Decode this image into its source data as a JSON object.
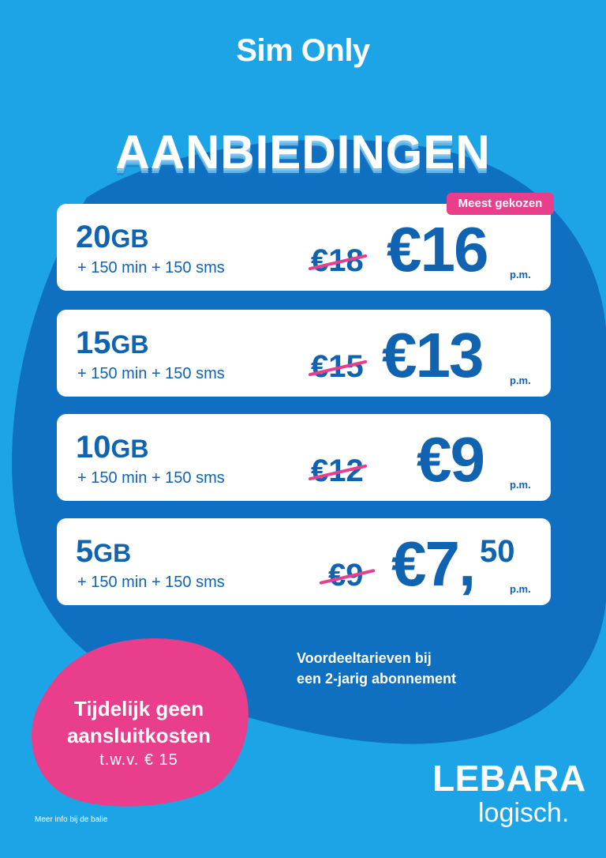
{
  "header": {
    "subtitle": "Sim Only",
    "title": "AANBIEDINGEN"
  },
  "badge": "Meest gekozen",
  "offers": [
    {
      "gb": "20",
      "unit": "GB",
      "extras": "+ 150 min + 150 sms",
      "old_price": "€18",
      "price": "€16",
      "cents": "",
      "per_month": "p.m."
    },
    {
      "gb": "15",
      "unit": "GB",
      "extras": "+ 150 min + 150 sms",
      "old_price": "€15",
      "price": "€13",
      "cents": "",
      "per_month": "p.m."
    },
    {
      "gb": "10",
      "unit": "GB",
      "extras": "+ 150 min + 150 sms",
      "old_price": "€12",
      "price": "€9",
      "cents": "",
      "per_month": "p.m."
    },
    {
      "gb": "5",
      "unit": "GB",
      "extras": "+ 150 min + 150 sms",
      "old_price": "€9",
      "price": "€7,",
      "cents": "50",
      "per_month": "p.m."
    }
  ],
  "note": {
    "line1": "Voordeeltarieven bij",
    "line2": "een 2-jarig abonnement"
  },
  "promo": {
    "line1": "Tijdelijk geen",
    "line2": "aansluitkosten",
    "line3": "t.w.v. € 15"
  },
  "brand": {
    "name": "LEBARA",
    "slogan": "logisch."
  },
  "footnote": "Meer info bij de balie",
  "colors": {
    "background": "#1ca4e6",
    "dark_blob": "#0f6fc0",
    "text_blue": "#0f63b0",
    "accent_pink": "#e83e8c"
  }
}
